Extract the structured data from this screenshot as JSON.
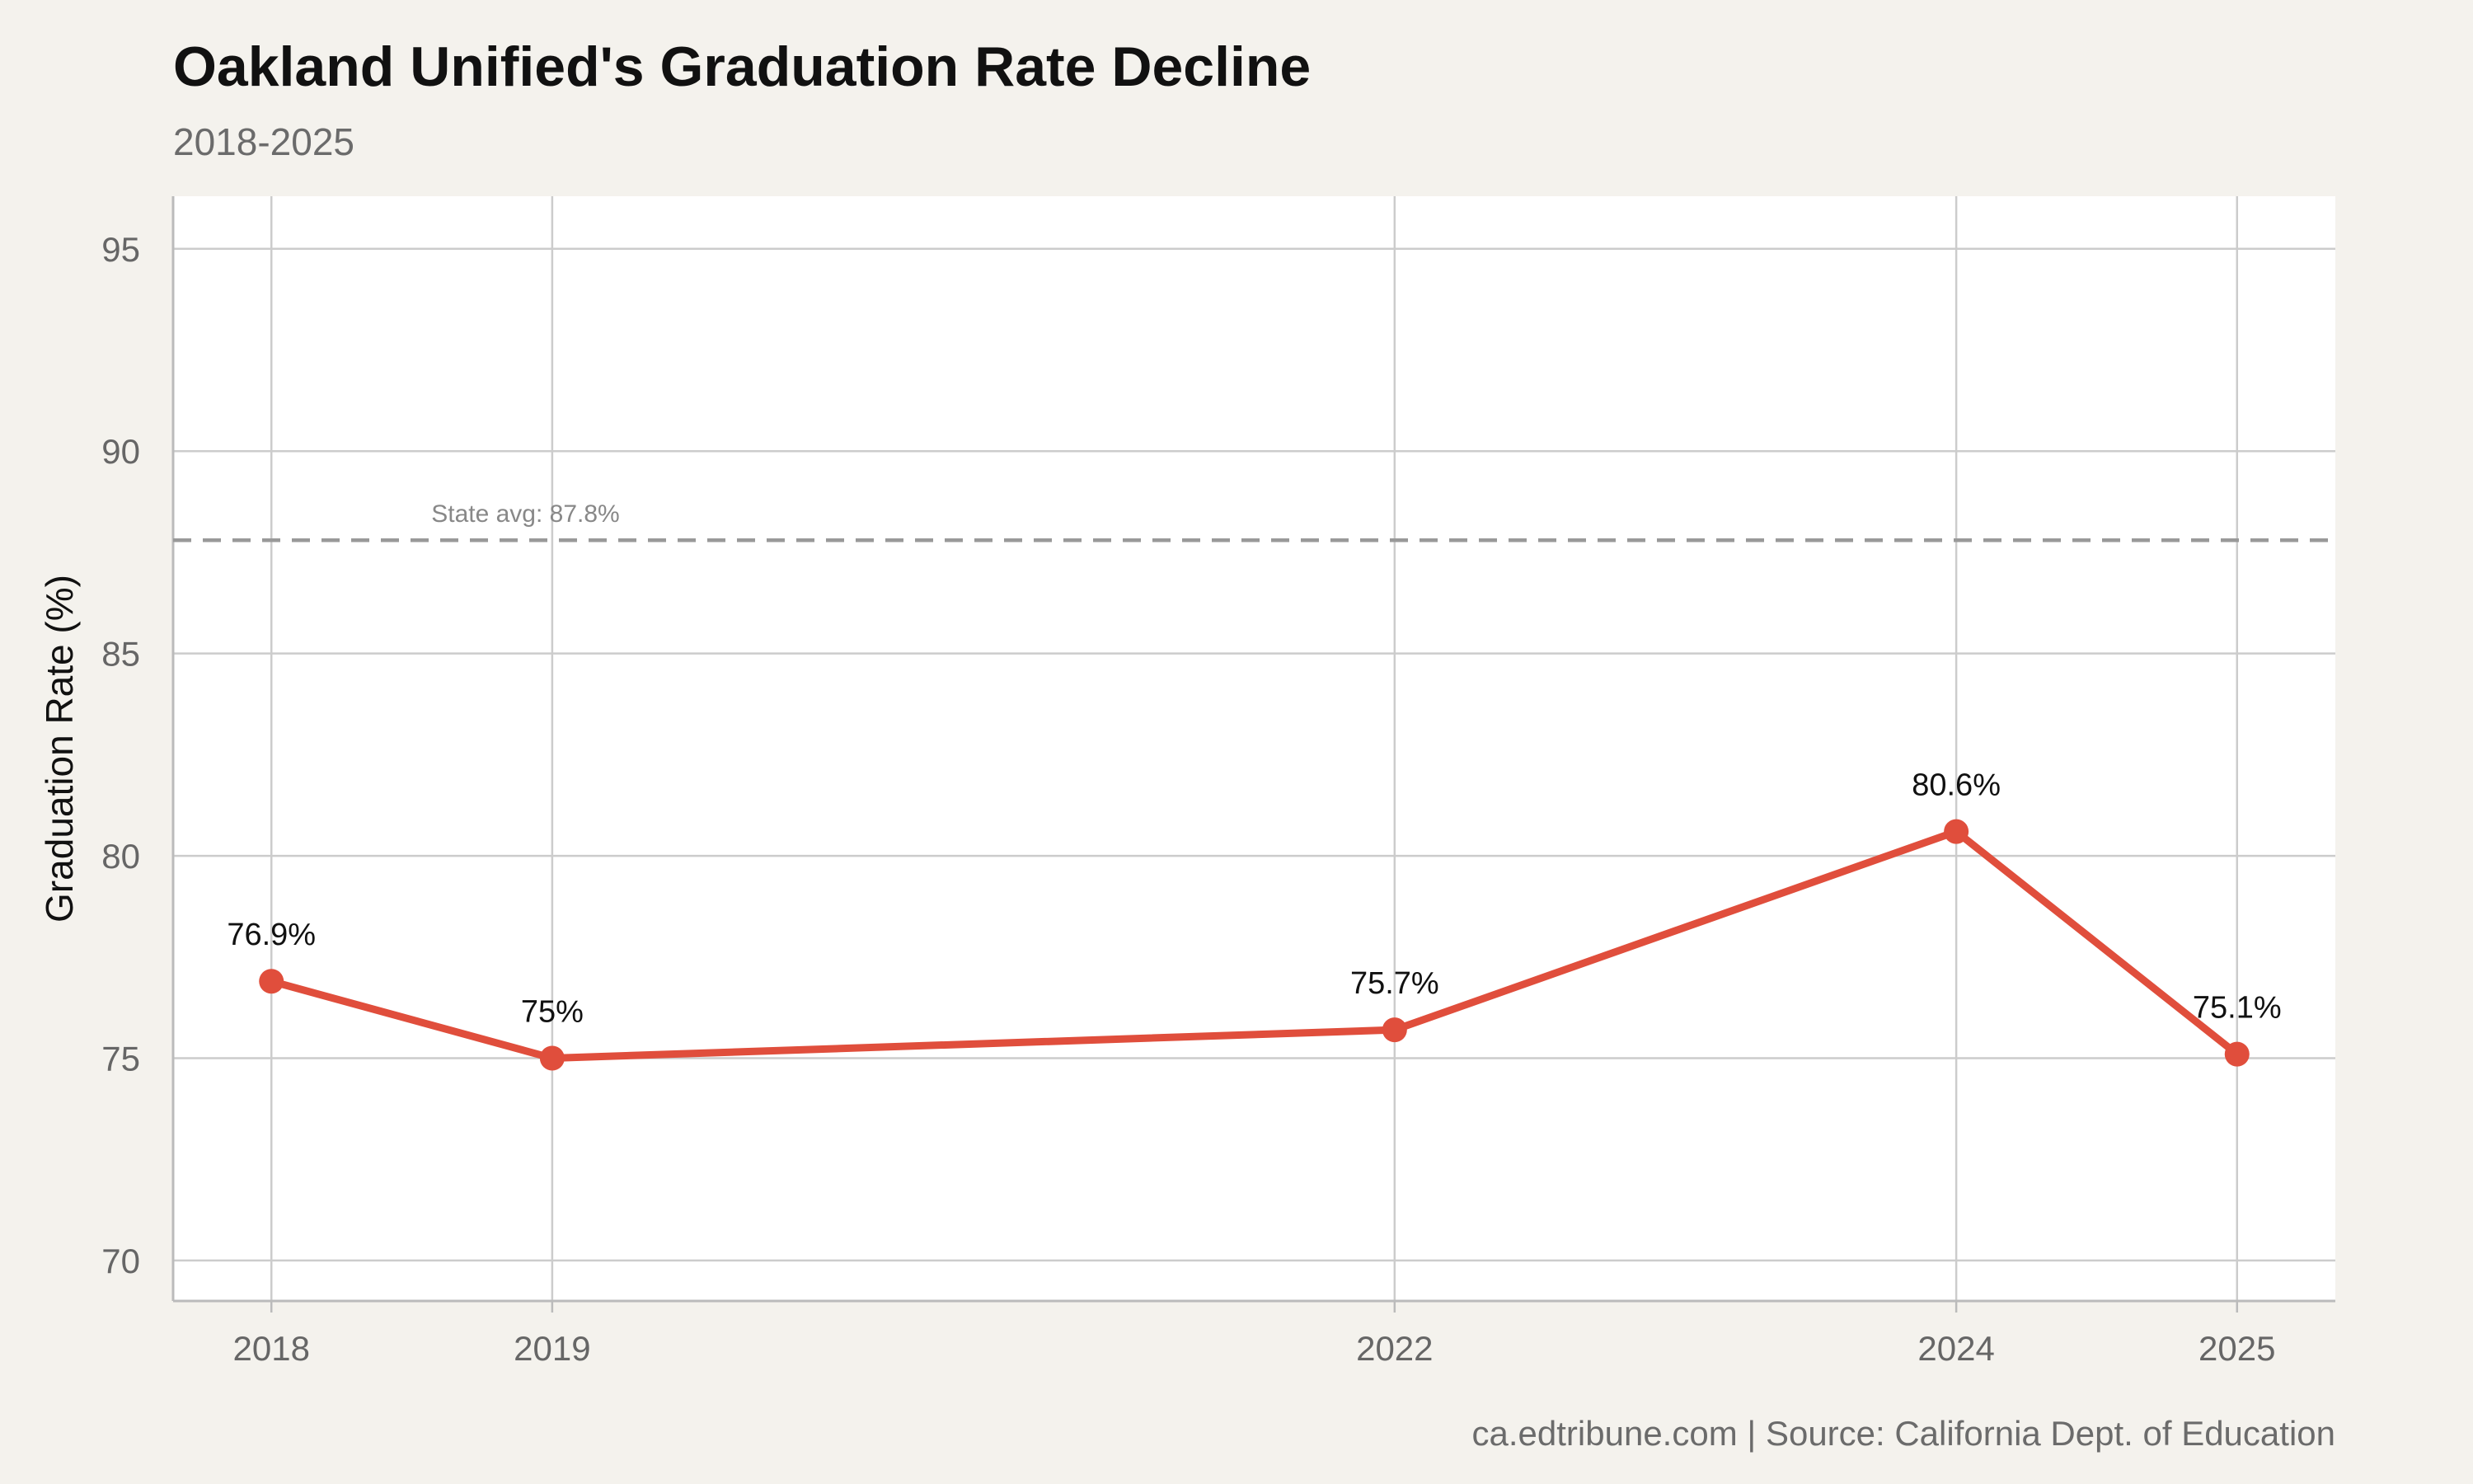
{
  "chart_data": {
    "type": "line",
    "title": "Oakland Unified's Graduation Rate Decline",
    "subtitle": "2018-2025",
    "ylabel": "Graduation Rate (%)",
    "xlabel": "",
    "caption": "ca.edtribune.com | Source: California Dept. of Education",
    "x": [
      2018,
      2019,
      2022,
      2024,
      2025
    ],
    "values": [
      76.9,
      75.0,
      75.7,
      80.6,
      75.1
    ],
    "data_labels": [
      "76.9%",
      "75%",
      "75.7%",
      "80.6%",
      "75.1%"
    ],
    "xlim": [
      2017.65,
      2025.35
    ],
    "ylim": [
      69,
      96.3
    ],
    "y_ticks": [
      70,
      75,
      80,
      85,
      90,
      95
    ],
    "y_tick_labels": [
      "70",
      "75",
      "80",
      "85",
      "90",
      "95"
    ],
    "x_ticks": [
      2018,
      2019,
      2022,
      2024,
      2025
    ],
    "x_tick_labels": [
      "2018",
      "2019",
      "2022",
      "2024",
      "2025"
    ],
    "reference_line": {
      "value": 87.8,
      "label": "State avg: 87.8%",
      "style": "dashed",
      "color": "#999999"
    },
    "series_color": "#e04e3c",
    "grid": true,
    "legend": "none"
  }
}
